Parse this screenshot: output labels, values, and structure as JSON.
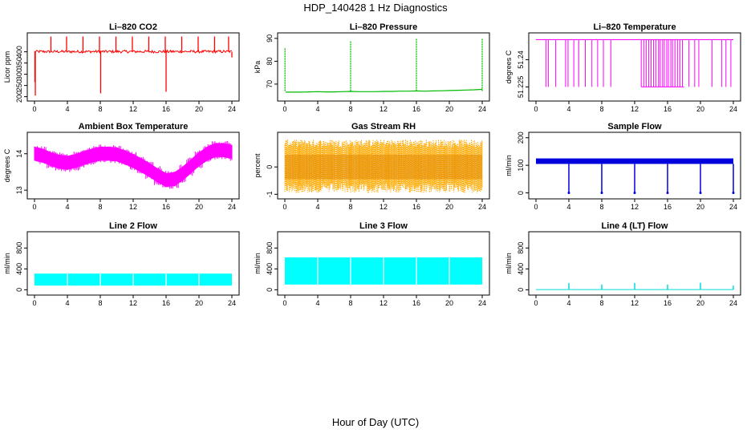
{
  "figure": {
    "title": "HDP_140428  1 Hz Diagnostics",
    "xlabel": "Hour of Day (UTC)"
  },
  "chart_data": [
    {
      "type": "line",
      "title": "Li–820 CO2",
      "ylabel": "Licor ppm",
      "color": "#ff0000",
      "xlim": [
        0,
        24
      ],
      "ylim": [
        195,
        470
      ],
      "xticks": [
        0,
        4,
        8,
        12,
        16,
        20,
        24
      ],
      "yticks": [
        200,
        250,
        300,
        350,
        400
      ],
      "baseline": 400,
      "band": [
        395,
        407
      ],
      "spikes": [
        {
          "x": 0.05,
          "y": 265
        },
        {
          "x": 0.1,
          "y": 205
        },
        {
          "x": 2.0,
          "y": 468
        },
        {
          "x": 3.9,
          "y": 468
        },
        {
          "x": 5.9,
          "y": 468
        },
        {
          "x": 7.9,
          "y": 468
        },
        {
          "x": 8.05,
          "y": 215
        },
        {
          "x": 9.9,
          "y": 468
        },
        {
          "x": 11.9,
          "y": 468
        },
        {
          "x": 13.9,
          "y": 468
        },
        {
          "x": 15.9,
          "y": 468
        },
        {
          "x": 16.0,
          "y": 222
        },
        {
          "x": 17.9,
          "y": 468
        },
        {
          "x": 19.9,
          "y": 468
        },
        {
          "x": 21.9,
          "y": 468
        },
        {
          "x": 23.6,
          "y": 468
        },
        {
          "x": 24.0,
          "y": 375
        }
      ]
    },
    {
      "type": "line",
      "title": "Li–820 Pressure",
      "ylabel": "kPa",
      "color": "#00bb00",
      "xlim": [
        0,
        24
      ],
      "ylim": [
        64,
        91
      ],
      "xticks": [
        0,
        4,
        8,
        12,
        16,
        20,
        24
      ],
      "yticks": [
        70,
        80,
        90
      ],
      "x": [
        0.1,
        1,
        2,
        3,
        4,
        5,
        6,
        7,
        8,
        9,
        10,
        11,
        12,
        13,
        14,
        15,
        16,
        17,
        18,
        19,
        20,
        21,
        22,
        23,
        24
      ],
      "y": [
        66.5,
        66.5,
        66.5,
        66.6,
        66.7,
        66.6,
        66.6,
        66.7,
        66.8,
        66.7,
        66.7,
        66.7,
        66.8,
        66.8,
        66.9,
        66.9,
        67.0,
        66.9,
        67.0,
        67.1,
        67.2,
        67.3,
        67.4,
        67.5,
        67.7
      ],
      "spikes": [
        {
          "x": 0.02,
          "y": 86
        },
        {
          "x": 8.0,
          "y": 89
        },
        {
          "x": 16.0,
          "y": 90
        },
        {
          "x": 24.0,
          "y": 90
        }
      ]
    },
    {
      "type": "line",
      "title": "Li–820 Temperature",
      "ylabel": "degrees C",
      "color": "#ff00ff",
      "xlim": [
        0,
        24
      ],
      "ylim": [
        51.219,
        51.253
      ],
      "xticks": [
        0,
        4,
        8,
        12,
        16,
        20,
        24
      ],
      "yticks": [
        51.225,
        51.24
      ],
      "upper": 51.251,
      "lower": 51.225,
      "dips": [
        1.2,
        1.5,
        2.4,
        3.6,
        3.9,
        4.6,
        5.2,
        6.0,
        6.8,
        7.5,
        8.2,
        9.1,
        12.8,
        13.1,
        13.4,
        13.7,
        14.0,
        14.3,
        14.6,
        14.9,
        15.1,
        15.4,
        15.6,
        15.9,
        16.1,
        16.4,
        16.6,
        16.9,
        17.2,
        17.5,
        17.8,
        18.6,
        19.3,
        19.8,
        21.4,
        22.6,
        23.1,
        23.7
      ]
    },
    {
      "type": "area",
      "title": "Ambient Box Temperature",
      "ylabel": "degrees C",
      "color": "#ff00ff",
      "xlim": [
        0,
        24
      ],
      "ylim": [
        12.85,
        14.5
      ],
      "xticks": [
        0,
        4,
        8,
        12,
        16,
        20,
        24
      ],
      "yticks": [
        13.0,
        14.0
      ],
      "x": [
        0,
        1,
        2,
        3,
        4,
        5,
        6,
        7,
        8,
        9,
        10,
        11,
        12,
        13,
        14,
        15,
        16,
        17,
        18,
        19,
        20,
        21,
        22,
        23,
        24
      ],
      "y": [
        14.0,
        13.95,
        13.85,
        13.78,
        13.75,
        13.8,
        13.88,
        13.95,
        14.0,
        14.0,
        13.98,
        13.9,
        13.8,
        13.68,
        13.55,
        13.4,
        13.28,
        13.3,
        13.45,
        13.65,
        13.85,
        14.0,
        14.1,
        14.1,
        14.05
      ],
      "spread": 0.36
    },
    {
      "type": "area",
      "title": "Gas Stream RH",
      "ylabel": "percent",
      "color": "#ffaa00",
      "xlim": [
        0,
        24
      ],
      "ylim": [
        -1.05,
        1.15
      ],
      "xticks": [
        0,
        4,
        8,
        12,
        16,
        20,
        24
      ],
      "yticks": [
        -1.0,
        0.0
      ],
      "center": 0.0,
      "inner": [
        -0.6,
        0.7
      ],
      "outer": [
        -0.95,
        1.0
      ]
    },
    {
      "type": "line",
      "title": "Sample Flow",
      "ylabel": "ml/min",
      "color": "#0000dd",
      "xlim": [
        0,
        24
      ],
      "ylim": [
        -10,
        208
      ],
      "xticks": [
        0,
        4,
        8,
        12,
        16,
        20,
        24
      ],
      "yticks": [
        0,
        100,
        200
      ],
      "band": [
        105,
        125
      ],
      "dips": [
        {
          "x": 4.0,
          "y": 0
        },
        {
          "x": 8.0,
          "y": 0
        },
        {
          "x": 12.0,
          "y": 0
        },
        {
          "x": 16.0,
          "y": 0
        },
        {
          "x": 20.0,
          "y": 0
        },
        {
          "x": 24.0,
          "y": 0
        }
      ]
    },
    {
      "type": "area",
      "title": "Line 2 Flow",
      "ylabel": "ml/min",
      "color": "#00ffff",
      "xlim": [
        0,
        24
      ],
      "ylim": [
        -40,
        1050
      ],
      "xticks": [
        0,
        4,
        8,
        12,
        16,
        20,
        24
      ],
      "yticks": [
        0,
        400,
        800
      ],
      "band": [
        80,
        310
      ],
      "gaps": [
        4,
        8,
        12,
        16,
        20
      ]
    },
    {
      "type": "area",
      "title": "Line 3 Flow",
      "ylabel": "ml/min",
      "color": "#00ffff",
      "xlim": [
        0,
        24
      ],
      "ylim": [
        -40,
        1050
      ],
      "xticks": [
        0,
        4,
        8,
        12,
        16,
        20,
        24
      ],
      "yticks": [
        0,
        400,
        800
      ],
      "band": [
        100,
        620
      ],
      "gaps": [
        4,
        8,
        12,
        16,
        20
      ]
    },
    {
      "type": "line",
      "title": "Line 4 (LT) Flow",
      "ylabel": "ml/min",
      "color": "#00dddd",
      "xlim": [
        0,
        24
      ],
      "ylim": [
        -40,
        1050
      ],
      "xticks": [
        0,
        4,
        8,
        12,
        16,
        20,
        24
      ],
      "yticks": [
        0,
        400,
        800
      ],
      "baseline": 5,
      "spikes": [
        {
          "x": 4.0,
          "y": 130
        },
        {
          "x": 8.0,
          "y": 100
        },
        {
          "x": 12.0,
          "y": 130
        },
        {
          "x": 16.0,
          "y": 100
        },
        {
          "x": 20.0,
          "y": 135
        },
        {
          "x": 24.0,
          "y": 80
        }
      ]
    }
  ]
}
